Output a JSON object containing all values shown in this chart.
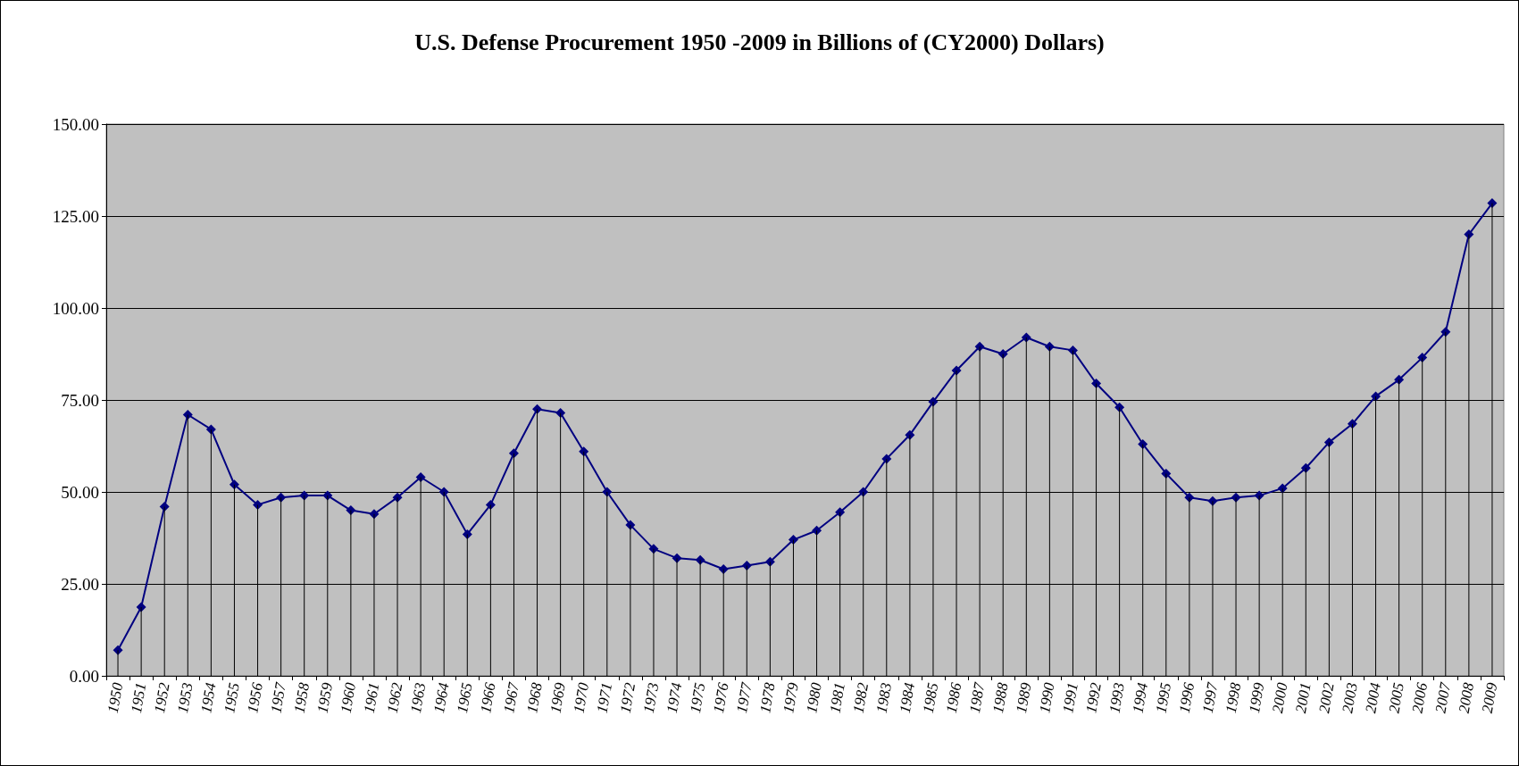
{
  "chart_data": {
    "type": "line",
    "title": "U.S. Defense Procurement 1950 -2009 in Billions of (CY2000) Dollars)",
    "categories": [
      "1950",
      "1951",
      "1952",
      "1953",
      "1954",
      "1955",
      "1956",
      "1957",
      "1958",
      "1959",
      "1960",
      "1961",
      "1962",
      "1963",
      "1964",
      "1965",
      "1966",
      "1967",
      "1968",
      "1969",
      "1970",
      "1971",
      "1972",
      "1973",
      "1974",
      "1975",
      "1976",
      "1977",
      "1978",
      "1979",
      "1980",
      "1981",
      "1982",
      "1983",
      "1984",
      "1985",
      "1986",
      "1987",
      "1988",
      "1989",
      "1990",
      "1991",
      "1992",
      "1993",
      "1994",
      "1995",
      "1996",
      "1997",
      "1998",
      "1999",
      "2000",
      "2001",
      "2002",
      "2003",
      "2004",
      "2005",
      "2006",
      "2007",
      "2008",
      "2009"
    ],
    "series": [
      {
        "type": "bar",
        "color": "#000000",
        "values": [
          7,
          18.7,
          46,
          71,
          67,
          52,
          46.5,
          48.5,
          49,
          49,
          45,
          44,
          48.5,
          54,
          50,
          38.5,
          46.5,
          60.5,
          72.5,
          71.5,
          61,
          50,
          41,
          34.5,
          32,
          31.5,
          29,
          30,
          31,
          37,
          39.5,
          44.5,
          50,
          59,
          65.5,
          74.5,
          83,
          89.5,
          87.5,
          92,
          89.5,
          88.5,
          79.5,
          73,
          63,
          55,
          48.5,
          47.5,
          48.5,
          49,
          51,
          56.5,
          63.5,
          68.5,
          76,
          80.5,
          86.5,
          93.5,
          120,
          128.5
        ]
      },
      {
        "color": "#000080",
        "values": [
          7,
          18.7,
          46,
          71,
          67,
          52,
          46.5,
          48.5,
          49,
          49,
          45,
          44,
          48.5,
          54,
          50,
          38.5,
          46.5,
          60.5,
          72.5,
          71.5,
          61,
          50,
          41,
          34.5,
          32,
          31.5,
          29,
          30,
          31,
          37,
          39.5,
          44.5,
          50,
          59,
          65.5,
          74.5,
          83,
          89.5,
          87.5,
          92,
          89.5,
          88.5,
          79.5,
          73,
          63,
          55,
          48.5,
          47.5,
          48.5,
          49,
          51,
          56.5,
          63.5,
          68.5,
          76,
          80.5,
          86.5,
          93.5,
          120,
          128.5
        ]
      }
    ],
    "ylim": [
      0,
      150
    ],
    "yticks": [
      {
        "value": 0,
        "label": "0.00"
      },
      {
        "value": 25,
        "label": "25.00"
      },
      {
        "value": 50,
        "label": "50.00"
      },
      {
        "value": 75,
        "label": "75.00"
      },
      {
        "value": 100,
        "label": "100.00"
      },
      {
        "value": 125,
        "label": "125.00"
      },
      {
        "value": 150,
        "label": "150.00"
      }
    ],
    "grid": "y",
    "marker": "diamond",
    "line_style": "solid"
  }
}
